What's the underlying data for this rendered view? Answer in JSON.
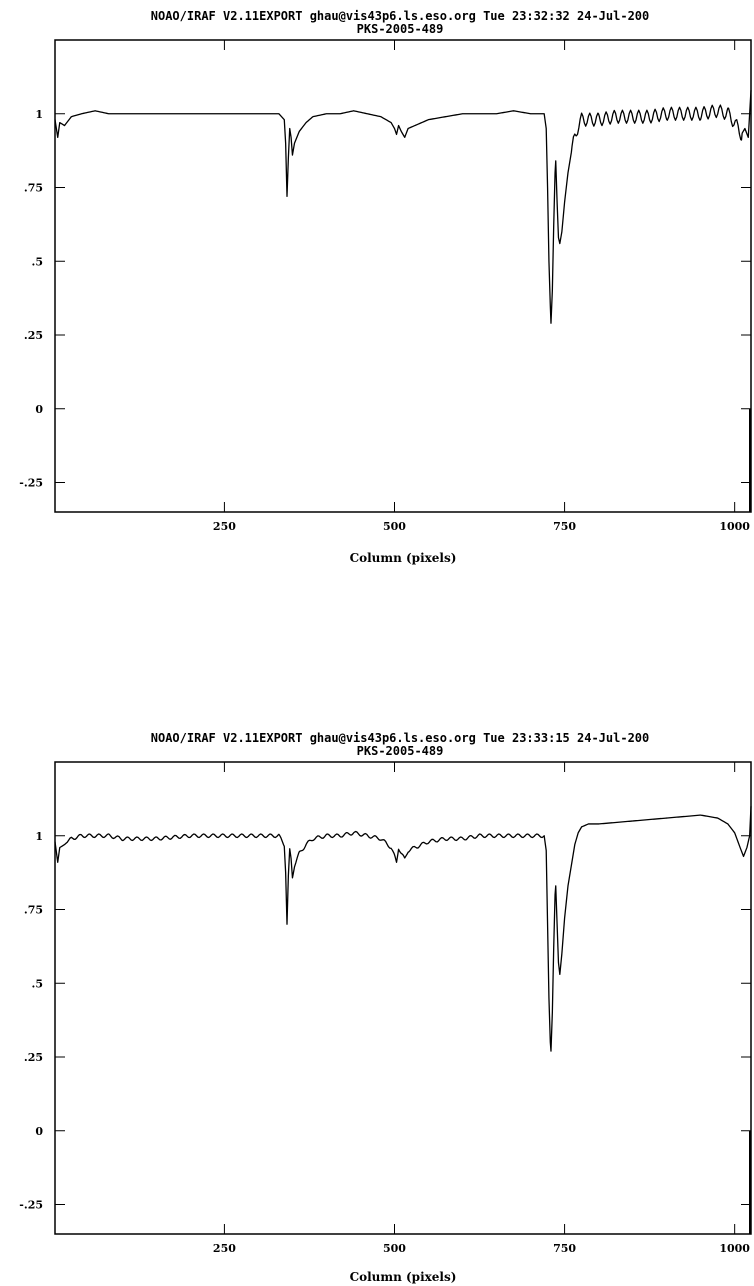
{
  "chart_data": [
    {
      "type": "line",
      "header": "NOAO/IRAF V2.11EXPORT ghau@vis43p6.ls.eso.org Tue 23:32:32 24-Jul-200",
      "title": "PKS-2005-489",
      "xlabel": "Column (pixels)",
      "ylabel": "",
      "xlim": [
        1,
        1024
      ],
      "ylim": [
        -0.35,
        1.25
      ],
      "xticks": [
        250,
        500,
        750,
        1000
      ],
      "xtick_labels": [
        "250",
        "500",
        "750",
        "1000"
      ],
      "yticks": [
        -0.25,
        0,
        0.25,
        0.5,
        0.75,
        1
      ],
      "ytick_labels": [
        "-.25",
        "0",
        ".25",
        ".5",
        ".75",
        "1"
      ],
      "grid": false,
      "series": [
        {
          "points": [
            [
              1,
              0.98
            ],
            [
              5,
              0.92
            ],
            [
              8,
              0.97
            ],
            [
              15,
              0.96
            ],
            [
              25,
              0.99
            ],
            [
              40,
              1.0
            ],
            [
              60,
              1.01
            ],
            [
              80,
              1.0
            ],
            [
              100,
              1.0
            ],
            [
              150,
              1.0
            ],
            [
              200,
              1.0
            ],
            [
              250,
              1.0
            ],
            [
              300,
              1.0
            ],
            [
              330,
              1.0
            ],
            [
              338,
              0.98
            ],
            [
              340,
              0.9
            ],
            [
              342,
              0.72
            ],
            [
              344,
              0.85
            ],
            [
              346,
              0.95
            ],
            [
              348,
              0.92
            ],
            [
              350,
              0.86
            ],
            [
              353,
              0.9
            ],
            [
              360,
              0.94
            ],
            [
              370,
              0.97
            ],
            [
              380,
              0.99
            ],
            [
              400,
              1.0
            ],
            [
              420,
              1.0
            ],
            [
              440,
              1.01
            ],
            [
              460,
              1.0
            ],
            [
              480,
              0.99
            ],
            [
              495,
              0.97
            ],
            [
              500,
              0.95
            ],
            [
              503,
              0.93
            ],
            [
              506,
              0.96
            ],
            [
              510,
              0.94
            ],
            [
              515,
              0.92
            ],
            [
              520,
              0.95
            ],
            [
              530,
              0.96
            ],
            [
              550,
              0.98
            ],
            [
              575,
              0.99
            ],
            [
              600,
              1.0
            ],
            [
              625,
              1.0
            ],
            [
              650,
              1.0
            ],
            [
              675,
              1.01
            ],
            [
              700,
              1.0
            ],
            [
              720,
              1.0
            ],
            [
              723,
              0.95
            ],
            [
              725,
              0.75
            ],
            [
              727,
              0.5
            ],
            [
              729,
              0.35
            ],
            [
              730,
              0.29
            ],
            [
              732,
              0.4
            ],
            [
              734,
              0.62
            ],
            [
              736,
              0.8
            ],
            [
              737,
              0.84
            ],
            [
              739,
              0.7
            ],
            [
              741,
              0.58
            ],
            [
              743,
              0.56
            ],
            [
              746,
              0.6
            ],
            [
              750,
              0.7
            ],
            [
              755,
              0.8
            ],
            [
              760,
              0.87
            ],
            [
              765,
              0.92
            ],
            [
              770,
              0.96
            ],
            [
              775,
              0.98
            ],
            [
              785,
              0.98
            ],
            [
              800,
              0.98
            ],
            [
              825,
              0.99
            ],
            [
              850,
              0.99
            ],
            [
              875,
              0.99
            ],
            [
              900,
              1.0
            ],
            [
              925,
              1.0
            ],
            [
              950,
              1.0
            ],
            [
              975,
              1.01
            ],
            [
              990,
              1.0
            ],
            [
              1000,
              0.97
            ],
            [
              1010,
              0.93
            ],
            [
              1015,
              0.95
            ],
            [
              1020,
              0.92
            ],
            [
              1024,
              1.08
            ]
          ],
          "oscillation": {
            "from_x": 760,
            "to_x": 1010,
            "period": 12,
            "amplitude": 0.022
          }
        }
      ]
    },
    {
      "type": "line",
      "header": "NOAO/IRAF V2.11EXPORT ghau@vis43p6.ls.eso.org Tue 23:33:15 24-Jul-200",
      "title": "PKS-2005-489",
      "xlabel": "Column (pixels)",
      "ylabel": "",
      "xlim": [
        1,
        1024
      ],
      "ylim": [
        -0.35,
        1.25
      ],
      "xticks": [
        250,
        500,
        750,
        1000
      ],
      "xtick_labels": [
        "250",
        "500",
        "750",
        "1000"
      ],
      "yticks": [
        -0.25,
        0,
        0.25,
        0.5,
        0.75,
        1
      ],
      "ytick_labels": [
        "-.25",
        "0",
        ".25",
        ".5",
        ".75",
        "1"
      ],
      "grid": false,
      "series": [
        {
          "points": [
            [
              1,
              0.98
            ],
            [
              5,
              0.91
            ],
            [
              8,
              0.96
            ],
            [
              15,
              0.97
            ],
            [
              25,
              0.99
            ],
            [
              40,
              1.0
            ],
            [
              60,
              1.0
            ],
            [
              80,
              1.0
            ],
            [
              100,
              0.99
            ],
            [
              150,
              0.99
            ],
            [
              200,
              1.0
            ],
            [
              250,
              1.0
            ],
            [
              300,
              1.0
            ],
            [
              330,
              1.0
            ],
            [
              338,
              0.97
            ],
            [
              340,
              0.88
            ],
            [
              342,
              0.7
            ],
            [
              344,
              0.86
            ],
            [
              346,
              0.95
            ],
            [
              348,
              0.92
            ],
            [
              350,
              0.86
            ],
            [
              353,
              0.9
            ],
            [
              360,
              0.94
            ],
            [
              370,
              0.97
            ],
            [
              380,
              0.99
            ],
            [
              400,
              1.0
            ],
            [
              420,
              1.0
            ],
            [
              440,
              1.01
            ],
            [
              460,
              1.0
            ],
            [
              480,
              0.99
            ],
            [
              495,
              0.96
            ],
            [
              500,
              0.93
            ],
            [
              503,
              0.91
            ],
            [
              506,
              0.96
            ],
            [
              510,
              0.94
            ],
            [
              515,
              0.92
            ],
            [
              520,
              0.95
            ],
            [
              530,
              0.96
            ],
            [
              550,
              0.98
            ],
            [
              575,
              0.99
            ],
            [
              600,
              0.99
            ],
            [
              625,
              1.0
            ],
            [
              650,
              1.0
            ],
            [
              675,
              1.0
            ],
            [
              700,
              1.0
            ],
            [
              720,
              1.0
            ],
            [
              723,
              0.95
            ],
            [
              725,
              0.7
            ],
            [
              727,
              0.45
            ],
            [
              729,
              0.3
            ],
            [
              730,
              0.27
            ],
            [
              732,
              0.4
            ],
            [
              734,
              0.62
            ],
            [
              736,
              0.8
            ],
            [
              737,
              0.83
            ],
            [
              739,
              0.7
            ],
            [
              741,
              0.57
            ],
            [
              743,
              0.53
            ],
            [
              746,
              0.6
            ],
            [
              750,
              0.72
            ],
            [
              755,
              0.83
            ],
            [
              760,
              0.9
            ],
            [
              765,
              0.97
            ],
            [
              770,
              1.01
            ],
            [
              775,
              1.03
            ],
            [
              785,
              1.04
            ],
            [
              800,
              1.04
            ],
            [
              850,
              1.05
            ],
            [
              900,
              1.06
            ],
            [
              950,
              1.07
            ],
            [
              975,
              1.06
            ],
            [
              990,
              1.04
            ],
            [
              1000,
              1.01
            ],
            [
              1008,
              0.96
            ],
            [
              1013,
              0.93
            ],
            [
              1018,
              0.96
            ],
            [
              1022,
              1.0
            ],
            [
              1024,
              1.1
            ]
          ],
          "oscillation": {
            "from_x": 20,
            "to_x": 720,
            "period": 14,
            "amplitude": 0.006
          }
        }
      ]
    }
  ]
}
